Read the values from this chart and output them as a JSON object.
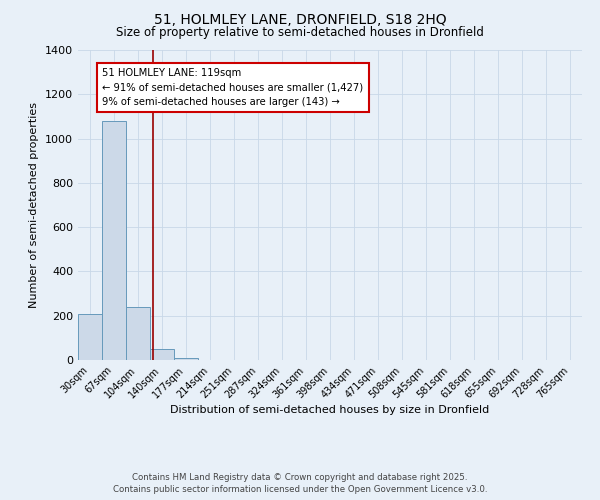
{
  "title_line1": "51, HOLMLEY LANE, DRONFIELD, S18 2HQ",
  "title_line2": "Size of property relative to semi-detached houses in Dronfield",
  "xlabel": "Distribution of semi-detached houses by size in Dronfield",
  "ylabel": "Number of semi-detached properties",
  "categories": [
    "30sqm",
    "67sqm",
    "104sqm",
    "140sqm",
    "177sqm",
    "214sqm",
    "251sqm",
    "287sqm",
    "324sqm",
    "361sqm",
    "398sqm",
    "434sqm",
    "471sqm",
    "508sqm",
    "545sqm",
    "581sqm",
    "618sqm",
    "655sqm",
    "692sqm",
    "728sqm",
    "765sqm"
  ],
  "values": [
    210,
    1080,
    240,
    50,
    10,
    0,
    0,
    0,
    0,
    0,
    0,
    0,
    0,
    0,
    0,
    0,
    0,
    0,
    0,
    0,
    0
  ],
  "bar_color": "#ccd9e8",
  "bar_edge_color": "#6699bb",
  "red_line_x": 2.62,
  "annotation_title": "51 HOLMLEY LANE: 119sqm",
  "annotation_line2": "← 91% of semi-detached houses are smaller (1,427)",
  "annotation_line3": "9% of semi-detached houses are larger (143) →",
  "annotation_box_color": "#ffffff",
  "annotation_box_edge": "#cc0000",
  "red_line_color": "#990000",
  "grid_color": "#c8d8e8",
  "background_color": "#e8f0f8",
  "ylim": [
    0,
    1400
  ],
  "footer_line1": "Contains HM Land Registry data © Crown copyright and database right 2025.",
  "footer_line2": "Contains public sector information licensed under the Open Government Licence v3.0."
}
